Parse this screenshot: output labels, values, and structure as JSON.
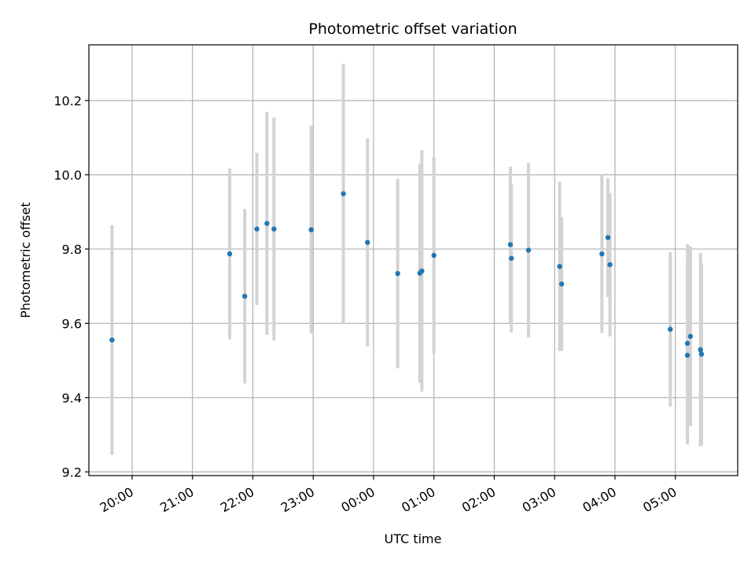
{
  "chart_data": {
    "type": "scatter",
    "title": "Photometric offset variation",
    "xlabel": "UTC time",
    "ylabel": "Photometric offset",
    "x_ticks": [
      "20:00",
      "21:00",
      "22:00",
      "23:00",
      "00:00",
      "01:00",
      "02:00",
      "03:00",
      "04:00",
      "05:00"
    ],
    "y_ticks": [
      "9.2",
      "9.4",
      "9.6",
      "9.8",
      "10.0",
      "10.2"
    ],
    "ylim": [
      9.19,
      10.35
    ],
    "xlim": [
      "19:17",
      "06:02"
    ],
    "grid": true,
    "colors": {
      "point": "#1f77b4",
      "errorbar": "#d3d3d3",
      "grid": "#b0b0b0"
    },
    "points": [
      {
        "x": "19:40",
        "y": 9.555,
        "yerr": 0.31
      },
      {
        "x": "21:37",
        "y": 9.787,
        "yerr": 0.23
      },
      {
        "x": "21:52",
        "y": 9.673,
        "yerr": 0.235
      },
      {
        "x": "22:04",
        "y": 9.854,
        "yerr": 0.205
      },
      {
        "x": "22:14",
        "y": 9.869,
        "yerr": 0.3
      },
      {
        "x": "22:21",
        "y": 9.854,
        "yerr": 0.3
      },
      {
        "x": "22:58",
        "y": 9.852,
        "yerr": 0.28
      },
      {
        "x": "23:30",
        "y": 9.949,
        "yerr": 0.35
      },
      {
        "x": "23:54",
        "y": 9.818,
        "yerr": 0.28
      },
      {
        "x": "00:24",
        "y": 9.734,
        "yerr": 0.255
      },
      {
        "x": "00:46",
        "y": 9.735,
        "yerr": 0.295
      },
      {
        "x": "00:48",
        "y": 9.741,
        "yerr": 0.325
      },
      {
        "x": "01:00",
        "y": 9.783,
        "yerr": 0.265
      },
      {
        "x": "02:16",
        "y": 9.812,
        "yerr": 0.21
      },
      {
        "x": "02:17",
        "y": 9.775,
        "yerr": 0.2
      },
      {
        "x": "02:34",
        "y": 9.797,
        "yerr": 0.235
      },
      {
        "x": "03:05",
        "y": 9.753,
        "yerr": 0.228
      },
      {
        "x": "03:07",
        "y": 9.706,
        "yerr": 0.18
      },
      {
        "x": "03:47",
        "y": 9.787,
        "yerr": 0.213
      },
      {
        "x": "03:53",
        "y": 9.831,
        "yerr": 0.16
      },
      {
        "x": "03:55",
        "y": 9.758,
        "yerr": 0.193
      },
      {
        "x": "04:55",
        "y": 9.584,
        "yerr": 0.208
      },
      {
        "x": "05:12",
        "y": 9.546,
        "yerr": 0.267
      },
      {
        "x": "05:12",
        "y": 9.514,
        "yerr": 0.24
      },
      {
        "x": "05:15",
        "y": 9.565,
        "yerr": 0.242
      },
      {
        "x": "05:25",
        "y": 9.529,
        "yerr": 0.26
      },
      {
        "x": "05:26",
        "y": 9.517,
        "yerr": 0.245
      }
    ]
  }
}
